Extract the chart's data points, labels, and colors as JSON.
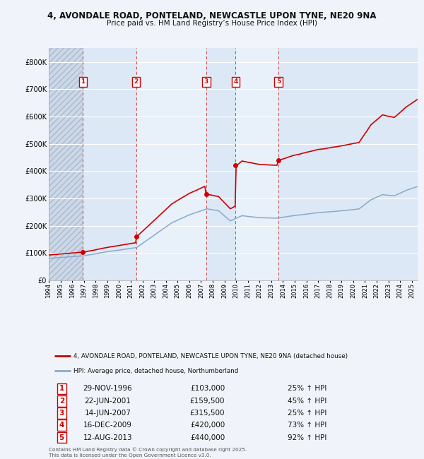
{
  "title_line1": "4, AVONDALE ROAD, PONTELAND, NEWCASTLE UPON TYNE, NE20 9NA",
  "title_line2": "Price paid vs. HM Land Registry’s House Price Index (HPI)",
  "xmin": 1994.0,
  "xmax": 2025.5,
  "ymin": 0,
  "ymax": 850000,
  "yticks": [
    0,
    100000,
    200000,
    300000,
    400000,
    500000,
    600000,
    700000,
    800000
  ],
  "ytick_labels": [
    "£0",
    "£100K",
    "£200K",
    "£300K",
    "£400K",
    "£500K",
    "£600K",
    "£700K",
    "£800K"
  ],
  "sale_dates": [
    1996.91,
    2001.47,
    2007.45,
    2009.96,
    2013.62
  ],
  "sale_prices": [
    103000,
    159500,
    315500,
    420000,
    440000
  ],
  "sale_labels": [
    "1",
    "2",
    "3",
    "4",
    "5"
  ],
  "sale_date_strs": [
    "29-NOV-1996",
    "22-JUN-2001",
    "14-JUN-2007",
    "16-DEC-2009",
    "12-AUG-2013"
  ],
  "sale_price_strs": [
    "£103,000",
    "£159,500",
    "£315,500",
    "£420,000",
    "£440,000"
  ],
  "sale_hpi_strs": [
    "25% ↑ HPI",
    "45% ↑ HPI",
    "25% ↑ HPI",
    "73% ↑ HPI",
    "92% ↑ HPI"
  ],
  "legend_line1": "4, AVONDALE ROAD, PONTELAND, NEWCASTLE UPON TYNE, NE20 9NA (detached house)",
  "legend_line2": "HPI: Average price, detached house, Northumberland",
  "footer": "Contains HM Land Registry data © Crown copyright and database right 2025.\nThis data is licensed under the Open Government Licence v3.0.",
  "bg_color": "#f0f4fa",
  "plot_bg_color": "#e8f0f8",
  "hatch_color": "#ccd8e8",
  "grid_color": "#ffffff",
  "red_line_color": "#cc0000",
  "blue_line_color": "#88aacc",
  "marker_color": "#cc0000",
  "dashed_color": "#cc3333",
  "box_edge_color": "#cc0000",
  "legend_bg": "#ffffff"
}
